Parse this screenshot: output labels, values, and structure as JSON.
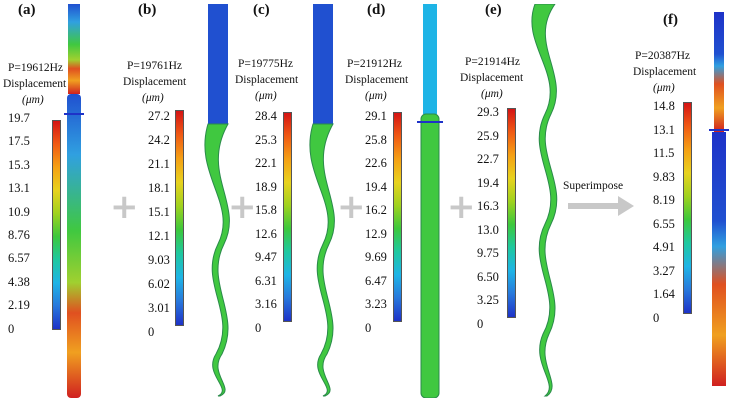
{
  "panels": [
    {
      "label": "(a)",
      "freq": "P=19612Hz",
      "disp": "Displacement",
      "unit": "(μm)",
      "ticks": [
        "19.7",
        "17.5",
        "15.3",
        "13.1",
        "10.9",
        "8.76",
        "6.57",
        "4.38",
        "2.19",
        "0"
      ]
    },
    {
      "label": "(b)",
      "freq": "P=19761Hz",
      "disp": "Displacement",
      "unit": "(μm)",
      "ticks": [
        "27.2",
        "24.2",
        "21.1",
        "18.1",
        "15.1",
        "12.1",
        "9.03",
        "6.02",
        "3.01",
        "0"
      ]
    },
    {
      "label": "(c)",
      "freq": "P=19775Hz",
      "disp": "Displacement",
      "unit": "(μm)",
      "ticks": [
        "28.4",
        "25.3",
        "22.1",
        "18.9",
        "15.8",
        "12.6",
        "9.47",
        "6.31",
        "3.16",
        "0"
      ]
    },
    {
      "label": "(d)",
      "freq": "P=21912Hz",
      "disp": "Displacement",
      "unit": "(μm)",
      "ticks": [
        "29.1",
        "25.8",
        "22.6",
        "19.4",
        "16.2",
        "12.9",
        "9.69",
        "6.47",
        "3.23",
        "0"
      ]
    },
    {
      "label": "(e)",
      "freq": "P=21914Hz",
      "disp": "Displacement",
      "unit": "(μm)",
      "ticks": [
        "29.3",
        "25.9",
        "22.7",
        "19.4",
        "16.3",
        "13.0",
        "9.75",
        "6.50",
        "3.25",
        "0"
      ]
    },
    {
      "label": "(f)",
      "freq": "P=20387Hz",
      "disp": "Displacement",
      "unit": "(μm)",
      "ticks": [
        "14.8",
        "13.1",
        "11.5",
        "9.83",
        "8.19",
        "6.55",
        "4.91",
        "3.27",
        "1.64",
        "0"
      ]
    }
  ],
  "operators": {
    "plus": "+",
    "superimpose": "Superimpose"
  },
  "colors": {
    "scale": [
      "#d41414",
      "#f05a14",
      "#f5a014",
      "#e8d21e",
      "#a0d21e",
      "#3cc83c",
      "#1ec8a0",
      "#1eb4e6",
      "#2878dc",
      "#1e32c8"
    ],
    "arrow": "#c8c8c8"
  }
}
